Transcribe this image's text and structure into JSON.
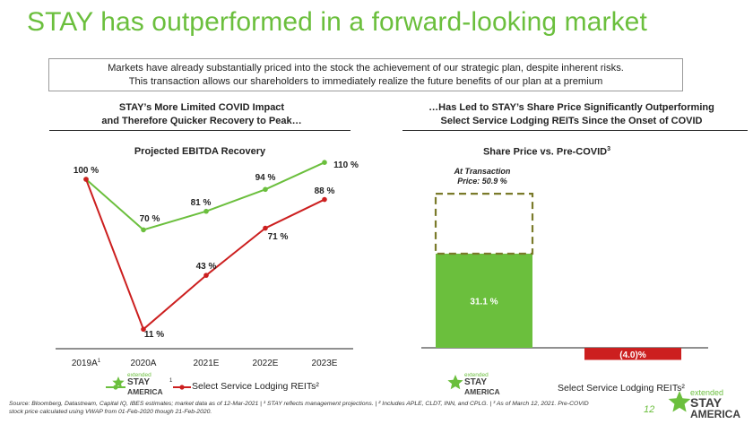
{
  "title": "STAY has outperformed in a forward-looking market",
  "banner": {
    "line1": "Markets have already substantially priced into the stock the achievement of our strategic plan, despite inherent risks.",
    "line2": "This transaction allows our shareholders to immediately realize the future benefits of our plan at a premium"
  },
  "left_section": {
    "line1": "STAY’s More Limited COVID Impact",
    "line2": "and Therefore Quicker Recovery to Peak…"
  },
  "right_section": {
    "line1": "…Has Led to STAY’s Share Price Significantly Outperforming",
    "line2": "Select Service Lodging REITs Since the Onset of COVID"
  },
  "legend": {
    "series2": "Select Service Lodging REITs²",
    "footnote_mark": "1"
  },
  "logo": {
    "small": "extended",
    "line1": "STAY",
    "line2": "AMERICA"
  },
  "footer": {
    "source_line1": "Source: Bloomberg, Datastream, Capital IQ, IBES estimates; market data as of 12-Mar-2021 | ¹ STAY reflects management projections. | ² Includes APLE, CLDT, INN, and CPLG. | ³ As of March 12, 2021. Pre-COVID",
    "source_line2": "stock price calculated using VWAP from 01-Feb-2020 though 21-Feb-2020.",
    "page_number": "12"
  },
  "colors": {
    "green": "#6bbf3d",
    "red": "#cc1f1f",
    "dashed": "#7a7a2a"
  },
  "chart_data": [
    {
      "type": "line",
      "title": "Projected EBITDA Recovery",
      "categories": [
        "2019A",
        "2020A",
        "2021E",
        "2022E",
        "2023E"
      ],
      "category_superscripts": [
        "1",
        "",
        "",
        "",
        ""
      ],
      "series": [
        {
          "name": "extended STAY AMERICA",
          "values": [
            100,
            70,
            81,
            94,
            110
          ],
          "labels": [
            "100 %",
            "70 %",
            "81 %",
            "94 %",
            "110 %"
          ]
        },
        {
          "name": "Select Service Lodging REITs²",
          "values": [
            100,
            11,
            43,
            71,
            88
          ],
          "labels": [
            "100 %",
            "11 %",
            "43 %",
            "71 %",
            "88 %"
          ]
        }
      ],
      "ylim": [
        0,
        115
      ],
      "grid": false
    },
    {
      "type": "bar",
      "title": "Share Price vs. Pre-COVID",
      "title_superscript": "3",
      "categories": [
        "extended STAY AMERICA",
        "Select Service Lodging REITs²"
      ],
      "values": [
        31.1,
        -4.0
      ],
      "labels": [
        "31.1 %",
        "(4.0)%"
      ],
      "transaction_marker": {
        "value": 50.9,
        "label_line1": "At Transaction",
        "label_line2": "Price: 50.9 %"
      },
      "ylim": [
        -10,
        55
      ]
    }
  ]
}
